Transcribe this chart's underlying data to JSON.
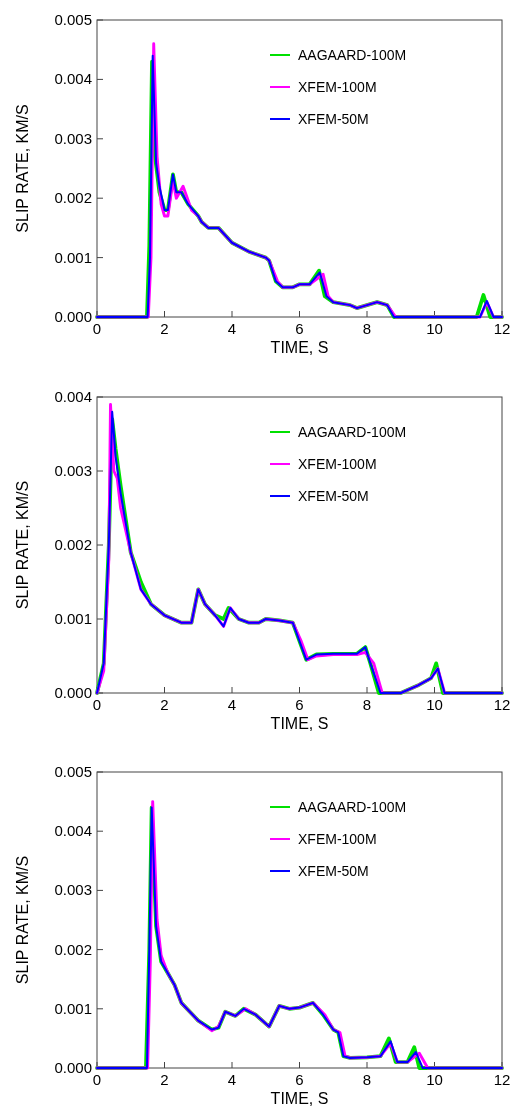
{
  "chart_data": [
    {
      "type": "line",
      "xlabel": "TIME, S",
      "ylabel": "SLIP RATE, KM/S",
      "xlim": [
        0,
        12
      ],
      "ylim": [
        0,
        0.005
      ],
      "xticks": [
        0,
        2,
        4,
        6,
        8,
        10,
        12
      ],
      "yticks": [
        {
          "value": 0,
          "label": "0.000"
        },
        {
          "value": 0.001,
          "label": "0.001"
        },
        {
          "value": 0.002,
          "label": "0.002"
        },
        {
          "value": 0.003,
          "label": "0.003"
        },
        {
          "value": 0.004,
          "label": "0.004"
        },
        {
          "value": 0.005,
          "label": "0.005"
        }
      ],
      "legend": "top right",
      "grid": false,
      "series": [
        {
          "name": "AAGAARD-100M",
          "color": "#00e000",
          "x": [
            0,
            1.48,
            1.55,
            1.63,
            1.72,
            1.85,
            2.0,
            2.1,
            2.25,
            2.35,
            2.5,
            2.7,
            3.0,
            3.1,
            3.3,
            3.6,
            4.0,
            4.5,
            5.0,
            5.1,
            5.3,
            5.5,
            5.8,
            6.0,
            6.3,
            6.58,
            6.75,
            7.0,
            7.5,
            7.7,
            8.0,
            8.3,
            8.6,
            8.8,
            11.25,
            11.45,
            11.65,
            12
          ],
          "values": [
            0,
            0,
            0.0012,
            0.0043,
            0.0027,
            0.0021,
            0.0018,
            0.0018,
            0.0024,
            0.0021,
            0.0021,
            0.0019,
            0.0017,
            0.0016,
            0.0015,
            0.0015,
            0.00125,
            0.0011,
            0.001,
            0.00095,
            0.0006,
            0.0005,
            0.0005,
            0.00055,
            0.00055,
            0.00078,
            0.00035,
            0.00025,
            0.0002,
            0.00015,
            0.0002,
            0.00025,
            0.0002,
            0,
            0,
            0.00037,
            0,
            0
          ]
        },
        {
          "name": "XFEM-100M",
          "color": "#ff00ff",
          "x": [
            0,
            1.52,
            1.6,
            1.68,
            1.78,
            1.9,
            2.0,
            2.1,
            2.25,
            2.35,
            2.55,
            2.8,
            3.0,
            3.1,
            3.3,
            3.6,
            4.0,
            4.5,
            5.0,
            5.1,
            5.35,
            5.5,
            5.8,
            6.0,
            6.3,
            6.7,
            6.85,
            7.0,
            7.5,
            7.7,
            8.0,
            8.3,
            8.6,
            8.85,
            11.35,
            11.55,
            11.75,
            12
          ],
          "values": [
            0,
            0,
            0.001,
            0.0046,
            0.0027,
            0.0019,
            0.0017,
            0.0017,
            0.0023,
            0.002,
            0.0022,
            0.0018,
            0.0017,
            0.0016,
            0.0015,
            0.0015,
            0.00125,
            0.0011,
            0.001,
            0.00095,
            0.0006,
            0.0005,
            0.0005,
            0.00055,
            0.00055,
            0.00072,
            0.00035,
            0.00025,
            0.0002,
            0.00015,
            0.0002,
            0.00025,
            0.0002,
            0,
            0,
            0.00025,
            0,
            0
          ]
        },
        {
          "name": "XFEM-50M",
          "color": "#0000ff",
          "x": [
            0,
            1.5,
            1.57,
            1.65,
            1.75,
            1.85,
            2.0,
            2.1,
            2.25,
            2.35,
            2.5,
            2.7,
            3.0,
            3.1,
            3.3,
            3.6,
            4.0,
            4.5,
            5.0,
            5.1,
            5.3,
            5.5,
            5.8,
            6.0,
            6.3,
            6.6,
            6.8,
            7.0,
            7.5,
            7.7,
            8.0,
            8.3,
            8.6,
            8.8,
            11.35,
            11.55,
            11.75,
            12
          ],
          "values": [
            0,
            0,
            0.001,
            0.0044,
            0.0026,
            0.0022,
            0.0018,
            0.0018,
            0.0024,
            0.0021,
            0.0021,
            0.0019,
            0.0017,
            0.0016,
            0.0015,
            0.0015,
            0.00125,
            0.0011,
            0.001,
            0.00095,
            0.0006,
            0.0005,
            0.0005,
            0.00055,
            0.00055,
            0.00075,
            0.00035,
            0.00025,
            0.0002,
            0.00015,
            0.0002,
            0.00025,
            0.0002,
            0,
            0,
            0.00027,
            0,
            0
          ]
        }
      ]
    },
    {
      "type": "line",
      "xlabel": "TIME, S",
      "ylabel": "SLIP RATE, KM/S",
      "xlim": [
        0,
        12
      ],
      "ylim": [
        0,
        0.004
      ],
      "xticks": [
        0,
        2,
        4,
        6,
        8,
        10,
        12
      ],
      "yticks": [
        {
          "value": 0,
          "label": "0.000"
        },
        {
          "value": 0.001,
          "label": "0.001"
        },
        {
          "value": 0.002,
          "label": "0.002"
        },
        {
          "value": 0.003,
          "label": "0.003"
        },
        {
          "value": 0.004,
          "label": "0.004"
        }
      ],
      "legend": "top right",
      "grid": false,
      "series": [
        {
          "name": "AAGAARD-100M",
          "color": "#00e000",
          "x": [
            0,
            0.2,
            0.35,
            0.45,
            0.55,
            0.7,
            1.0,
            1.3,
            1.6,
            2.0,
            2.5,
            2.8,
            3.0,
            3.2,
            3.5,
            3.75,
            3.9,
            4.2,
            4.5,
            4.8,
            5.0,
            5.4,
            5.8,
            6.0,
            6.2,
            6.5,
            7.0,
            7.7,
            7.95,
            8.1,
            8.35,
            9.0,
            9.5,
            9.9,
            10.05,
            10.25,
            12
          ],
          "values": [
            0,
            0.0004,
            0.002,
            0.0037,
            0.0033,
            0.0028,
            0.0019,
            0.0015,
            0.0012,
            0.00105,
            0.00095,
            0.00095,
            0.0014,
            0.0012,
            0.00105,
            0.001,
            0.00115,
            0.001,
            0.00095,
            0.00095,
            0.001,
            0.00098,
            0.00095,
            0.0007,
            0.00045,
            0.00052,
            0.00053,
            0.00053,
            0.00062,
            0.0004,
            0,
            0,
            0.0001,
            0.0002,
            0.0004,
            0,
            0
          ]
        },
        {
          "name": "XFEM-100M",
          "color": "#ff00ff",
          "x": [
            0,
            0.2,
            0.35,
            0.4,
            0.5,
            0.6,
            0.7,
            1.0,
            1.3,
            1.6,
            2.0,
            2.5,
            2.8,
            3.0,
            3.2,
            3.5,
            3.75,
            3.95,
            4.2,
            4.5,
            4.8,
            5.0,
            5.4,
            5.8,
            6.05,
            6.25,
            6.5,
            7.0,
            7.7,
            7.95,
            8.2,
            8.45,
            9.0,
            9.5,
            9.9,
            10.1,
            10.3,
            12
          ],
          "values": [
            0,
            0.0003,
            0.0018,
            0.0039,
            0.003,
            0.0029,
            0.0025,
            0.0019,
            0.0014,
            0.0012,
            0.00105,
            0.00095,
            0.00095,
            0.0014,
            0.0012,
            0.00105,
            0.0009,
            0.00115,
            0.001,
            0.00095,
            0.00095,
            0.001,
            0.00098,
            0.00095,
            0.0007,
            0.00045,
            0.0005,
            0.00052,
            0.00052,
            0.00055,
            0.0004,
            0,
            0,
            0.0001,
            0.0002,
            0.00033,
            0,
            0
          ]
        },
        {
          "name": "XFEM-50M",
          "color": "#0000ff",
          "x": [
            0,
            0.2,
            0.35,
            0.45,
            0.55,
            0.7,
            1.0,
            1.3,
            1.6,
            2.0,
            2.5,
            2.8,
            3.0,
            3.2,
            3.5,
            3.75,
            3.95,
            4.2,
            4.5,
            4.8,
            5.0,
            5.4,
            5.8,
            6.0,
            6.2,
            6.5,
            7.0,
            7.7,
            7.95,
            8.1,
            8.4,
            9.0,
            9.5,
            9.9,
            10.1,
            10.3,
            12
          ],
          "values": [
            0,
            0.0004,
            0.002,
            0.0038,
            0.0032,
            0.0027,
            0.0019,
            0.0014,
            0.0012,
            0.00105,
            0.00095,
            0.00095,
            0.0014,
            0.0012,
            0.00105,
            0.0009,
            0.00115,
            0.001,
            0.00095,
            0.00095,
            0.001,
            0.00098,
            0.00095,
            0.0007,
            0.00045,
            0.00052,
            0.00053,
            0.00053,
            0.00062,
            0.0004,
            0,
            0,
            0.0001,
            0.0002,
            0.00033,
            0,
            0
          ]
        }
      ]
    },
    {
      "type": "line",
      "xlabel": "TIME, S",
      "ylabel": "SLIP RATE, KM/S",
      "xlim": [
        0,
        12
      ],
      "ylim": [
        0,
        0.005
      ],
      "xticks": [
        0,
        2,
        4,
        6,
        8,
        10,
        12
      ],
      "yticks": [
        {
          "value": 0,
          "label": "0.000"
        },
        {
          "value": 0.001,
          "label": "0.001"
        },
        {
          "value": 0.002,
          "label": "0.002"
        },
        {
          "value": 0.003,
          "label": "0.003"
        },
        {
          "value": 0.004,
          "label": "0.004"
        },
        {
          "value": 0.005,
          "label": "0.005"
        }
      ],
      "legend": "top right",
      "grid": false,
      "series": [
        {
          "name": "AAGAARD-100M",
          "color": "#00e000",
          "x": [
            0,
            1.45,
            1.55,
            1.62,
            1.75,
            1.9,
            2.1,
            2.3,
            2.5,
            3.0,
            3.4,
            3.6,
            3.8,
            4.1,
            4.35,
            4.7,
            5.1,
            5.4,
            5.7,
            6.0,
            6.4,
            6.7,
            7.0,
            7.15,
            7.3,
            7.5,
            8.0,
            8.4,
            8.65,
            8.85,
            9.2,
            9.4,
            9.55,
            12
          ],
          "values": [
            0,
            0,
            0.002,
            0.0044,
            0.0024,
            0.0018,
            0.0016,
            0.0014,
            0.0011,
            0.0008,
            0.00065,
            0.00068,
            0.00095,
            0.00088,
            0.001,
            0.0009,
            0.0007,
            0.00105,
            0.001,
            0.00102,
            0.0011,
            0.0009,
            0.00065,
            0.0006,
            0.0002,
            0.00017,
            0.00018,
            0.0002,
            0.0005,
            0.0001,
            0.0001,
            0.00035,
            0,
            0
          ]
        },
        {
          "name": "XFEM-100M",
          "color": "#ff00ff",
          "x": [
            0,
            1.5,
            1.58,
            1.65,
            1.78,
            1.9,
            2.1,
            2.3,
            2.5,
            3.0,
            3.4,
            3.6,
            3.8,
            4.1,
            4.4,
            4.7,
            5.1,
            5.4,
            5.7,
            6.0,
            6.4,
            6.75,
            7.0,
            7.2,
            7.35,
            7.5,
            8.0,
            8.4,
            8.7,
            8.9,
            9.2,
            9.55,
            9.8,
            12
          ],
          "values": [
            0,
            0,
            0.0018,
            0.0045,
            0.0025,
            0.0019,
            0.0016,
            0.0014,
            0.0011,
            0.0008,
            0.00063,
            0.0007,
            0.00095,
            0.00088,
            0.001,
            0.0009,
            0.0007,
            0.00105,
            0.001,
            0.00102,
            0.0011,
            0.0009,
            0.00065,
            0.0006,
            0.0002,
            0.00017,
            0.00018,
            0.0002,
            0.00042,
            0.0001,
            0.0001,
            0.00025,
            0,
            0
          ]
        },
        {
          "name": "XFEM-50M",
          "color": "#0000ff",
          "x": [
            0,
            1.48,
            1.55,
            1.62,
            1.75,
            1.9,
            2.1,
            2.3,
            2.5,
            3.0,
            3.4,
            3.6,
            3.8,
            4.1,
            4.35,
            4.7,
            5.1,
            5.4,
            5.7,
            6.0,
            6.4,
            6.7,
            7.0,
            7.15,
            7.3,
            7.5,
            8.0,
            8.4,
            8.7,
            8.9,
            9.2,
            9.45,
            9.65,
            12
          ],
          "values": [
            0,
            0,
            0.002,
            0.0044,
            0.0024,
            0.0018,
            0.0016,
            0.0014,
            0.0011,
            0.0008,
            0.00065,
            0.00068,
            0.00095,
            0.00088,
            0.001,
            0.0009,
            0.0007,
            0.00105,
            0.001,
            0.00102,
            0.0011,
            0.0009,
            0.00065,
            0.0006,
            0.0002,
            0.00017,
            0.00018,
            0.0002,
            0.00045,
            0.0001,
            0.0001,
            0.00027,
            0,
            0
          ]
        }
      ]
    }
  ]
}
